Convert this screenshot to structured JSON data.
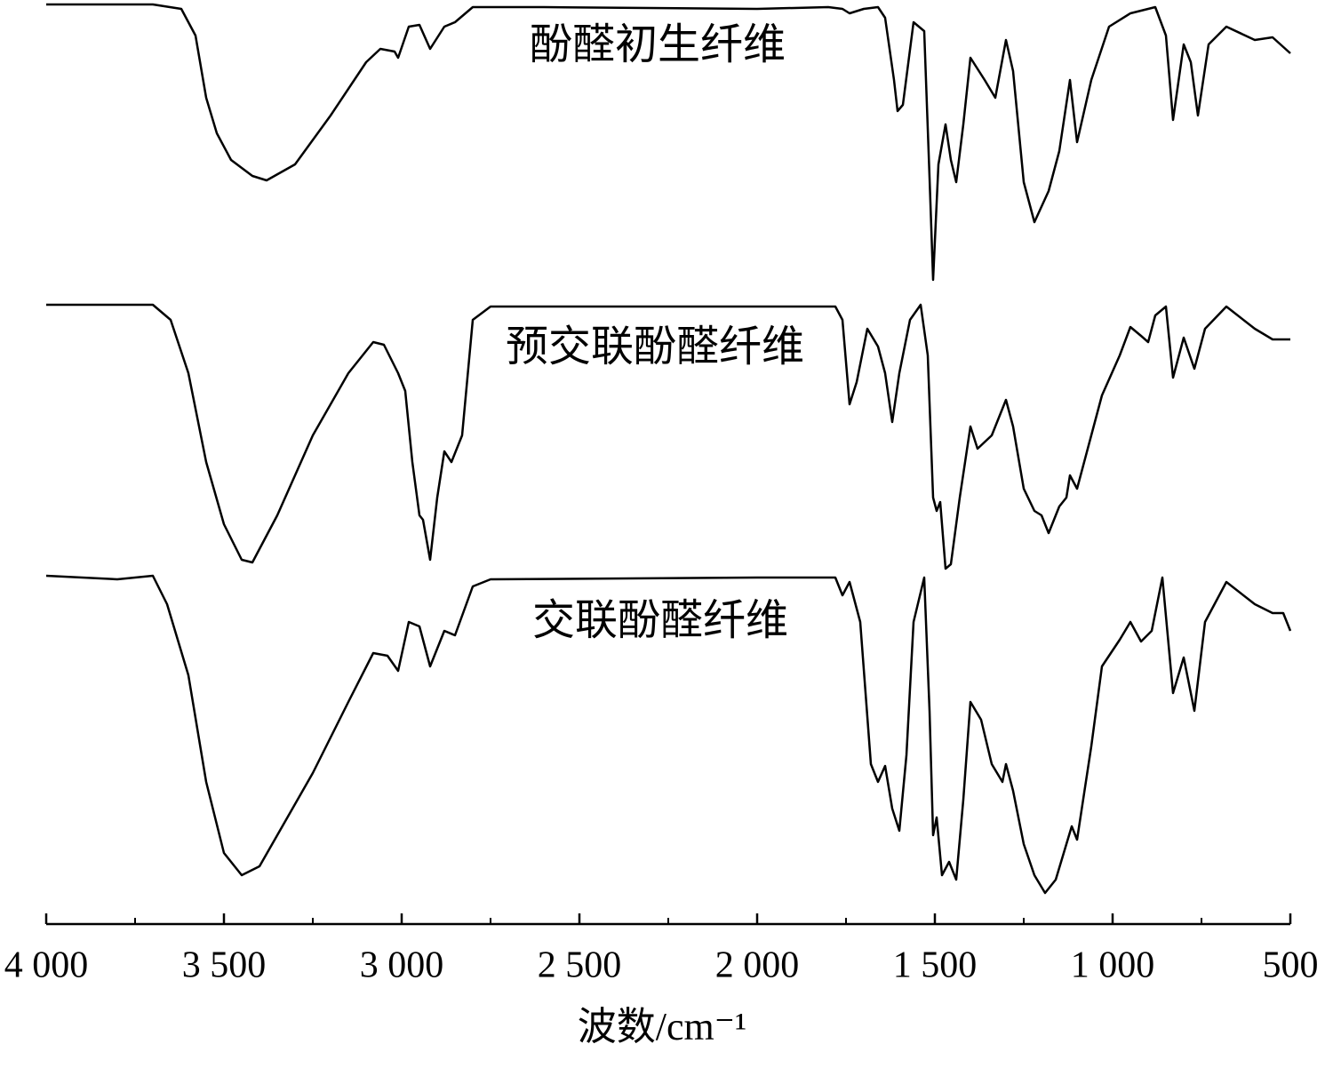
{
  "chart_data": {
    "type": "line",
    "xlabel": "波数/cm⁻¹",
    "xlim": [
      4000,
      500
    ],
    "xticks": [
      {
        "value": 4000,
        "label": "4 000"
      },
      {
        "value": 3500,
        "label": "3 500"
      },
      {
        "value": 3000,
        "label": "3 000"
      },
      {
        "value": 2500,
        "label": "2 500"
      },
      {
        "value": 2000,
        "label": "2 000"
      },
      {
        "value": 1500,
        "label": "1 500"
      },
      {
        "value": 1000,
        "label": "1 000"
      },
      500
    ],
    "xminorticks": [
      3750,
      3250,
      2750,
      2250,
      1750,
      1250,
      750
    ],
    "ylim": [
      0,
      104
    ],
    "series": [
      {
        "name": "酚醛初生纤维",
        "color": "#000000",
        "x": [
          4000,
          3700,
          3620,
          3580,
          3550,
          3520,
          3480,
          3420,
          3380,
          3300,
          3200,
          3100,
          3060,
          3020,
          3010,
          2980,
          2950,
          2920,
          2880,
          2850,
          2800,
          2600,
          2000,
          1800,
          1760,
          1740,
          1700,
          1660,
          1640,
          1615,
          1605,
          1590,
          1560,
          1530,
          1515,
          1505,
          1490,
          1470,
          1455,
          1440,
          1420,
          1400,
          1360,
          1330,
          1300,
          1280,
          1250,
          1220,
          1180,
          1150,
          1120,
          1100,
          1060,
          1010,
          950,
          880,
          850,
          830,
          800,
          780,
          760,
          730,
          680,
          600,
          550,
          500
        ],
        "values": [
          103.5,
          103.5,
          103,
          100,
          93,
          89,
          86,
          84.2,
          83.7,
          85.5,
          91,
          97,
          98.5,
          98.2,
          97.5,
          101,
          101.2,
          98.5,
          101,
          101.5,
          103.2,
          103.2,
          103,
          103.2,
          103,
          102.5,
          103,
          103.2,
          102,
          95,
          91.5,
          92.2,
          101.5,
          100.5,
          84,
          72.5,
          85.5,
          90,
          86,
          83.5,
          90,
          97.5,
          95,
          93,
          99.5,
          96,
          83.5,
          79,
          82.5,
          87,
          95,
          88,
          95,
          101,
          102.5,
          103.2,
          100,
          90.5,
          99,
          97,
          91,
          99,
          101,
          99.5,
          99.8,
          98
        ]
      },
      {
        "name": "预交联酚醛纤维",
        "color": "#000000",
        "x": [
          4000,
          3700,
          3650,
          3600,
          3550,
          3500,
          3450,
          3420,
          3350,
          3250,
          3150,
          3080,
          3050,
          3010,
          2990,
          2970,
          2950,
          2940,
          2920,
          2900,
          2880,
          2860,
          2830,
          2800,
          2750,
          2000,
          1780,
          1760,
          1740,
          1720,
          1690,
          1660,
          1640,
          1620,
          1600,
          1570,
          1540,
          1520,
          1505,
          1495,
          1485,
          1470,
          1455,
          1430,
          1400,
          1380,
          1340,
          1300,
          1280,
          1250,
          1220,
          1200,
          1180,
          1150,
          1130,
          1120,
          1100,
          1060,
          1030,
          980,
          950,
          920,
          900,
          880,
          850,
          830,
          800,
          770,
          740,
          680,
          600,
          550,
          500
        ],
        "values": [
          69.7,
          69.7,
          68,
          62,
          52,
          45,
          41,
          40.7,
          46,
          55,
          62,
          65.5,
          65.2,
          62,
          60,
          52,
          46,
          45.5,
          41,
          48,
          53.2,
          52,
          55,
          68,
          69.5,
          69.5,
          69.5,
          68,
          58.5,
          61,
          67,
          65,
          62,
          56.5,
          62,
          68,
          69.7,
          64,
          48,
          46.5,
          47.5,
          40,
          40.5,
          48,
          56,
          53.5,
          55,
          59,
          56,
          49,
          46.5,
          46,
          44,
          47,
          48,
          50.5,
          49,
          55,
          59.5,
          64,
          67.2,
          66.2,
          65.5,
          68.5,
          69.5,
          61.5,
          66,
          62.5,
          67,
          69.5,
          67,
          65.8,
          65.8
        ]
      },
      {
        "name": "交联酚醛纤维",
        "color": "#000000",
        "x": [
          4000,
          3800,
          3700,
          3660,
          3600,
          3550,
          3500,
          3450,
          3400,
          3350,
          3250,
          3150,
          3080,
          3040,
          3010,
          2980,
          2950,
          2920,
          2880,
          2850,
          2800,
          2750,
          2000,
          1780,
          1760,
          1740,
          1710,
          1680,
          1660,
          1640,
          1620,
          1600,
          1580,
          1560,
          1530,
          1515,
          1505,
          1495,
          1480,
          1460,
          1440,
          1420,
          1400,
          1370,
          1340,
          1310,
          1300,
          1280,
          1250,
          1220,
          1190,
          1160,
          1130,
          1115,
          1100,
          1060,
          1030,
          980,
          950,
          920,
          890,
          860,
          830,
          800,
          770,
          740,
          680,
          600,
          550,
          520,
          500
        ],
        "values": [
          39.2,
          38.8,
          39.2,
          36,
          28,
          16,
          8,
          5.5,
          6.5,
          10,
          17,
          25,
          30.5,
          30.2,
          28.5,
          34,
          33.5,
          29,
          33,
          32.5,
          38,
          38.8,
          39,
          39,
          37,
          38.5,
          34,
          18,
          16,
          17.8,
          13,
          10.5,
          19,
          34,
          39,
          24,
          10,
          12,
          5.5,
          7,
          5,
          14,
          25,
          23,
          18,
          16,
          18,
          15,
          9,
          5.5,
          3.5,
          5,
          9,
          11,
          9.5,
          20,
          29,
          32,
          34,
          31.8,
          33,
          39,
          26,
          30,
          24,
          34,
          38.5,
          36,
          35,
          35,
          33
        ]
      }
    ]
  }
}
